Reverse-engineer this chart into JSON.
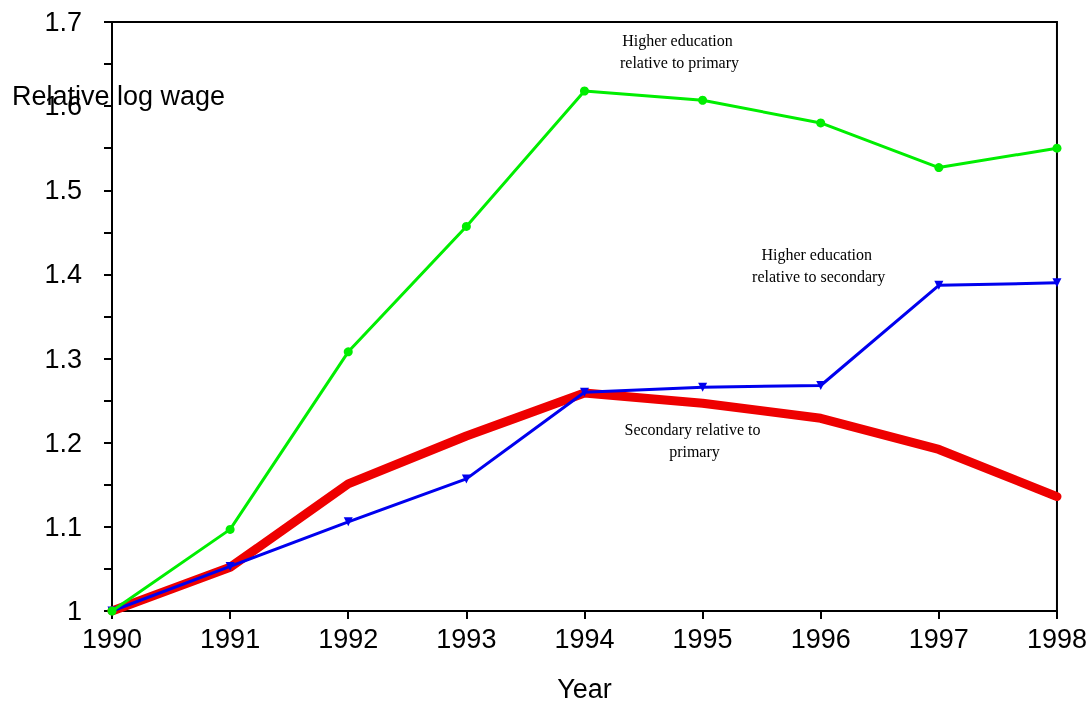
{
  "chart_data": {
    "type": "line",
    "xlabel": "Year",
    "ylabel": "Relative log wage",
    "x": [
      1990,
      1991,
      1992,
      1993,
      1994,
      1995,
      1996,
      1997,
      1998
    ],
    "xlim": [
      1990,
      1998
    ],
    "xticks": [
      1990,
      1991,
      1992,
      1993,
      1994,
      1995,
      1996,
      1997,
      1998
    ],
    "ylim": [
      1,
      1.7
    ],
    "yticks": [
      1,
      1.1,
      1.2,
      1.3,
      1.4,
      1.5,
      1.6,
      1.7
    ],
    "grid": false,
    "legend": false,
    "line_style": "solid",
    "series": [
      {
        "name": "Higher education relative to primary",
        "color": "#00ee00",
        "marker": "circle",
        "values": [
          1.0,
          1.097,
          1.308,
          1.457,
          1.618,
          1.607,
          1.58,
          1.527,
          1.55
        ]
      },
      {
        "name": "Higher education relative to secondary",
        "color": "#0000ee",
        "marker": "triangle",
        "values": [
          1.0,
          1.053,
          1.106,
          1.157,
          1.26,
          1.266,
          1.268,
          1.387,
          1.39
        ]
      },
      {
        "name": "Secondary relative to primary",
        "color": "#ee0000",
        "marker": "none",
        "values": [
          1.0,
          1.052,
          1.151,
          1.208,
          1.259,
          1.247,
          1.229,
          1.192,
          1.136
        ]
      }
    ]
  }
}
